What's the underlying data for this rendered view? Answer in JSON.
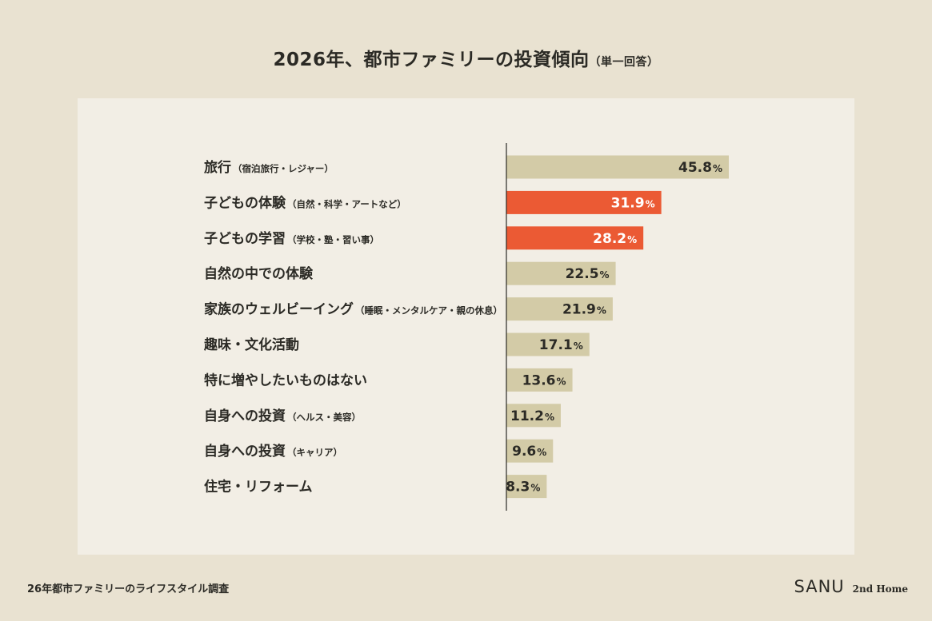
{
  "title": {
    "main": "2026年、都市ファミリーの投資傾向",
    "sub": "（単一回答）"
  },
  "colors": {
    "background": "#e9e2d1",
    "panel": "#f2eee5",
    "bar": "#d3cba7",
    "highlight": "#eb5a34",
    "text": "#2b2a25"
  },
  "chart_data": {
    "type": "bar",
    "orientation": "horizontal",
    "title": "2026年、都市ファミリーの投資傾向（単一回答）",
    "categories": [
      {
        "label": "旅行",
        "sub": "（宿泊旅行・レジャー）"
      },
      {
        "label": "子どもの体験",
        "sub": "（自然・科学・アートなど）"
      },
      {
        "label": "子どもの学習",
        "sub": "（学校・塾・習い事）"
      },
      {
        "label": "自然の中での体験",
        "sub": ""
      },
      {
        "label": "家族のウェルビーイング",
        "sub": "（睡眠・メンタルケア・親の休息）"
      },
      {
        "label": "趣味・文化活動",
        "sub": ""
      },
      {
        "label": "特に増やしたいものはない",
        "sub": ""
      },
      {
        "label": "自身への投資",
        "sub": "（ヘルス・美容）"
      },
      {
        "label": "自身への投資",
        "sub": "（キャリア）"
      },
      {
        "label": "住宅・リフォーム",
        "sub": ""
      }
    ],
    "values": [
      45.8,
      31.9,
      28.2,
      22.5,
      21.9,
      17.1,
      13.6,
      11.2,
      9.6,
      8.3
    ],
    "highlight": [
      false,
      true,
      true,
      false,
      false,
      false,
      false,
      false,
      false,
      false
    ],
    "unit": "%",
    "xlim": [
      0,
      60
    ]
  },
  "footer": {
    "source": "26年都市ファミリーのライフスタイル調査",
    "brand": "SANU",
    "brand_sub": "2nd Home"
  }
}
